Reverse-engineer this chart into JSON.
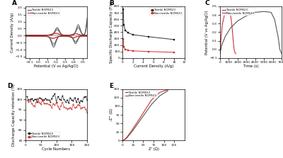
{
  "panel_A": {
    "label": "A",
    "xlabel": "Potential (V vs Ag/AgCl)",
    "ylabel": "Current Density (A/g)",
    "xlim": [
      -0.15,
      0.55
    ],
    "ylim": [
      -1.6,
      2.1
    ],
    "xticks": [
      -0.1,
      0.0,
      0.1,
      0.2,
      0.3,
      0.4,
      0.5
    ],
    "yticks": [
      -1.5,
      -1.0,
      -0.5,
      0.0,
      0.5,
      1.0,
      1.5,
      2.0
    ],
    "textile_color": "#555555",
    "nontextile_color": "#cc3333",
    "legend": [
      "Textile NCM523",
      "Non-textile NCM523"
    ]
  },
  "panel_B": {
    "label": "B",
    "xlabel": "Current Density (A/g)",
    "ylabel": "Specific Discharge Capacity (F/g)",
    "xlim": [
      0,
      12
    ],
    "ylim": [
      0,
      800
    ],
    "textile_x": [
      0.1,
      0.2,
      0.5,
      1.0,
      2.0,
      5.0,
      10.0
    ],
    "textile_y": [
      750,
      510,
      430,
      390,
      360,
      330,
      285
    ],
    "nontextile_x": [
      0.1,
      0.2,
      0.5,
      1.0,
      2.0,
      5.0,
      10.0
    ],
    "nontextile_y": [
      290,
      170,
      135,
      120,
      110,
      100,
      88
    ],
    "textile_color": "#333333",
    "nontextile_color": "#cc3333",
    "legend": [
      "Textile NCM523",
      "Non-textile NCM523"
    ]
  },
  "panel_C": {
    "label": "C",
    "xlabel": "Time (s)",
    "ylabel": "Potential (V vs Ag/AgCl)",
    "xlim": [
      0,
      7000
    ],
    "ylim": [
      -0.1,
      0.5
    ],
    "xticks": [
      0,
      1000,
      2000,
      3000,
      4000,
      5000,
      6000,
      7000
    ],
    "yticks": [
      -0.1,
      0.0,
      0.1,
      0.2,
      0.3,
      0.4,
      0.5
    ],
    "textile_color": "#555555",
    "nontextile_color": "#cc3333",
    "legend": [
      "Textile NCM523",
      "Non-textile NCM523"
    ],
    "textile_t": [
      0,
      200,
      600,
      1200,
      2000,
      3000,
      4000,
      5000,
      5800,
      6200,
      6600,
      6800,
      7000
    ],
    "textile_v": [
      -0.05,
      0.05,
      0.15,
      0.25,
      0.33,
      0.39,
      0.43,
      0.44,
      0.43,
      0.35,
      0.15,
      0.0,
      -0.05
    ],
    "nontextile_t": [
      0,
      100,
      250,
      500,
      750,
      900,
      1050,
      1200,
      1350,
      1500,
      1600,
      1700,
      1800
    ],
    "nontextile_v": [
      -0.05,
      0.1,
      0.28,
      0.4,
      0.43,
      0.44,
      0.43,
      0.4,
      0.28,
      0.1,
      0.0,
      -0.04,
      -0.05
    ]
  },
  "panel_D": {
    "label": "D",
    "xlabel": "Cycle Numbers",
    "ylabel": "Discharge Capacity retention (%)",
    "xlim": [
      0,
      200
    ],
    "ylim": [
      80,
      105
    ],
    "yticks": [
      80,
      85,
      90,
      95,
      100,
      105
    ],
    "xticks": [
      0,
      50,
      100,
      150,
      200
    ],
    "textile_color": "#333333",
    "nontextile_color": "#cc3333",
    "legend": [
      "Textile NCM523",
      "Non-textile NCM523"
    ]
  },
  "panel_E": {
    "label": "E",
    "xlabel": "Z' (Ω)",
    "ylabel": "-Z'' (Ω)",
    "xlim": [
      0,
      150
    ],
    "ylim": [
      0,
      150
    ],
    "xticks": [
      0,
      25,
      50,
      75,
      100,
      125
    ],
    "yticks": [
      0,
      25,
      50,
      75,
      100,
      125,
      150
    ],
    "textile_x": [
      0,
      5,
      10,
      15,
      25,
      40,
      55,
      70,
      90,
      110
    ],
    "textile_y": [
      0,
      3,
      8,
      15,
      30,
      55,
      80,
      105,
      130,
      145
    ],
    "nontextile_x": [
      0,
      5,
      10,
      15,
      25,
      40,
      55,
      70,
      90,
      110
    ],
    "nontextile_y": [
      0,
      4,
      10,
      18,
      35,
      62,
      90,
      118,
      140,
      148
    ],
    "textile_color": "#555555",
    "nontextile_color": "#cc3333",
    "legend": [
      "Textile NCM523",
      "Non-textile NCM523"
    ]
  },
  "bg_color": "#ffffff"
}
